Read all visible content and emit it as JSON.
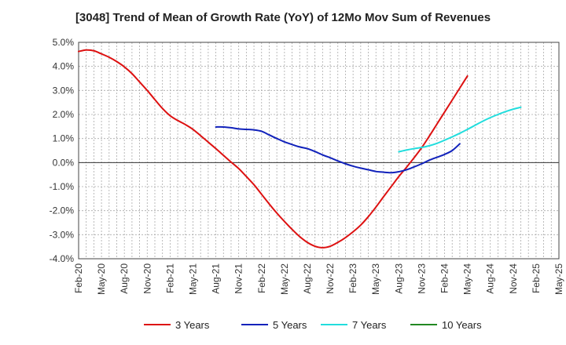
{
  "chart_data": {
    "type": "line",
    "title": "[3048]  Trend of Mean of Growth Rate (YoY) of 12Mo Mov Sum of Revenues",
    "xlabel": "",
    "ylabel": "",
    "ylim": [
      -4.0,
      5.0
    ],
    "yticks": [
      -4.0,
      -3.0,
      -2.0,
      -1.0,
      0.0,
      1.0,
      2.0,
      3.0,
      4.0,
      5.0
    ],
    "ytick_labels": [
      "-4.0%",
      "-3.0%",
      "-2.0%",
      "-1.0%",
      "0.0%",
      "1.0%",
      "2.0%",
      "3.0%",
      "4.0%",
      "5.0%"
    ],
    "x_index_range": [
      0,
      63
    ],
    "xtick_labels": [
      "Feb-20",
      "May-20",
      "Aug-20",
      "Nov-20",
      "Feb-21",
      "May-21",
      "Aug-21",
      "Nov-21",
      "Feb-22",
      "May-22",
      "Aug-22",
      "Nov-22",
      "Feb-23",
      "May-23",
      "Aug-23",
      "Nov-23",
      "Feb-24",
      "May-24",
      "Aug-24",
      "Nov-24",
      "Feb-25",
      "May-25"
    ],
    "xtick_month_index": [
      0,
      3,
      6,
      9,
      12,
      15,
      18,
      21,
      24,
      27,
      30,
      33,
      36,
      39,
      42,
      45,
      48,
      51,
      54,
      57,
      60,
      63
    ],
    "grid": true,
    "legend_position": "bottom",
    "series": [
      {
        "name": "3 Years",
        "color": "#dd1111",
        "start_index": 0,
        "values": [
          4.62,
          4.68,
          4.65,
          4.52,
          4.38,
          4.2,
          3.98,
          3.7,
          3.35,
          3.0,
          2.62,
          2.25,
          1.95,
          1.75,
          1.58,
          1.38,
          1.12,
          0.85,
          0.58,
          0.3,
          0.02,
          -0.25,
          -0.58,
          -0.92,
          -1.32,
          -1.72,
          -2.1,
          -2.45,
          -2.78,
          -3.08,
          -3.32,
          -3.48,
          -3.54,
          -3.48,
          -3.32,
          -3.12,
          -2.88,
          -2.6,
          -2.25,
          -1.85,
          -1.42,
          -1.0,
          -0.58,
          -0.2,
          0.2,
          0.62,
          1.1,
          1.6,
          2.1,
          2.6,
          3.1,
          3.6
        ]
      },
      {
        "name": "5 Years",
        "color": "#1122bb",
        "start_index": 18,
        "values": [
          1.48,
          1.48,
          1.45,
          1.4,
          1.38,
          1.36,
          1.3,
          1.15,
          1.0,
          0.86,
          0.75,
          0.65,
          0.58,
          0.46,
          0.32,
          0.2,
          0.07,
          -0.05,
          -0.15,
          -0.23,
          -0.3,
          -0.37,
          -0.4,
          -0.42,
          -0.38,
          -0.3,
          -0.18,
          -0.05,
          0.1,
          0.22,
          0.34,
          0.5,
          0.78
        ]
      },
      {
        "name": "7 Years",
        "color": "#22dddd",
        "start_index": 42,
        "values": [
          0.45,
          0.52,
          0.58,
          0.63,
          0.7,
          0.8,
          0.93,
          1.07,
          1.22,
          1.38,
          1.55,
          1.72,
          1.87,
          2.0,
          2.12,
          2.22,
          2.3
        ]
      },
      {
        "name": "10 Years",
        "color": "#228822",
        "start_index": 0,
        "values": []
      }
    ]
  }
}
